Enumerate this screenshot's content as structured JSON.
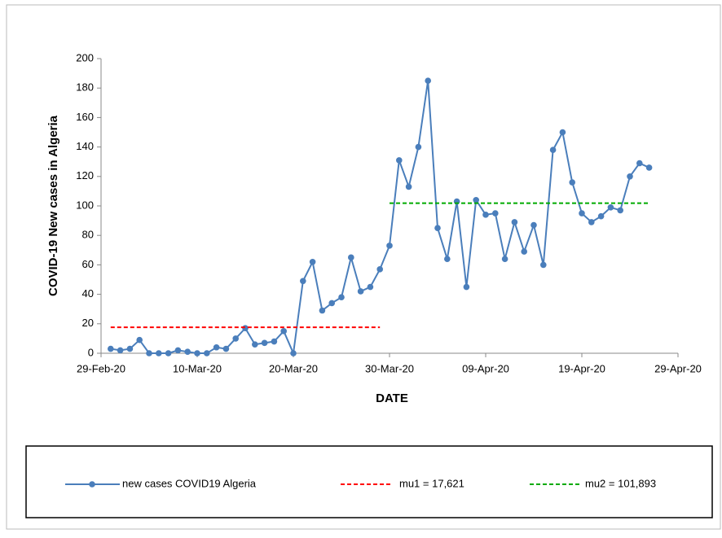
{
  "chart_data": {
    "type": "line",
    "y_label": "COVID-19 New cases in Algeria",
    "x_label": "DATE",
    "x": [
      "2020-03-01",
      "2020-03-02",
      "2020-03-03",
      "2020-03-04",
      "2020-03-05",
      "2020-03-06",
      "2020-03-07",
      "2020-03-08",
      "2020-03-09",
      "2020-03-10",
      "2020-03-11",
      "2020-03-12",
      "2020-03-13",
      "2020-03-14",
      "2020-03-15",
      "2020-03-16",
      "2020-03-17",
      "2020-03-18",
      "2020-03-19",
      "2020-03-20",
      "2020-03-21",
      "2020-03-22",
      "2020-03-23",
      "2020-03-24",
      "2020-03-25",
      "2020-03-26",
      "2020-03-27",
      "2020-03-28",
      "2020-03-29",
      "2020-03-30",
      "2020-03-31",
      "2020-04-01",
      "2020-04-02",
      "2020-04-03",
      "2020-04-04",
      "2020-04-05",
      "2020-04-06",
      "2020-04-07",
      "2020-04-08",
      "2020-04-09",
      "2020-04-10",
      "2020-04-11",
      "2020-04-12",
      "2020-04-13",
      "2020-04-14",
      "2020-04-15",
      "2020-04-16",
      "2020-04-17",
      "2020-04-18",
      "2020-04-19",
      "2020-04-20",
      "2020-04-21",
      "2020-04-22",
      "2020-04-23",
      "2020-04-24",
      "2020-04-25",
      "2020-04-26"
    ],
    "series": [
      {
        "name": "new cases COVID19 Algeria",
        "color": "#4a7ebb",
        "values": [
          3,
          2,
          3,
          9,
          0,
          0,
          0,
          2,
          1,
          0,
          0,
          4,
          3,
          10,
          17,
          6,
          7,
          8,
          15,
          0,
          49,
          62,
          29,
          34,
          38,
          65,
          42,
          45,
          57,
          73,
          131,
          113,
          140,
          185,
          85,
          64,
          103,
          45,
          104,
          94,
          95,
          64,
          89,
          69,
          87,
          60,
          138,
          150,
          116,
          95,
          89,
          93,
          99,
          97,
          120,
          129,
          126
        ]
      }
    ],
    "reference_lines": [
      {
        "name": "mu1 = 17,621",
        "value": 17.621,
        "x_start": "2020-03-01",
        "x_end": "2020-03-29",
        "color": "#ff0000"
      },
      {
        "name": "mu2 = 101,893",
        "value": 101.893,
        "x_start": "2020-03-30",
        "x_end": "2020-04-26",
        "color": "#00aa00"
      }
    ],
    "xlim": [
      "2020-02-29",
      "2020-04-29"
    ],
    "xticks": [
      {
        "value": "2020-02-29",
        "label": "29-Feb-20"
      },
      {
        "value": "2020-03-10",
        "label": "10-Mar-20"
      },
      {
        "value": "2020-03-20",
        "label": "20-Mar-20"
      },
      {
        "value": "2020-03-30",
        "label": "30-Mar-20"
      },
      {
        "value": "2020-04-09",
        "label": "09-Apr-20"
      },
      {
        "value": "2020-04-19",
        "label": "19-Apr-20"
      },
      {
        "value": "2020-04-29",
        "label": "29-Apr-20"
      }
    ],
    "ylim": [
      0,
      200
    ],
    "yticks": [
      0,
      20,
      40,
      60,
      80,
      100,
      120,
      140,
      160,
      180,
      200
    ],
    "legend": "bottom"
  }
}
